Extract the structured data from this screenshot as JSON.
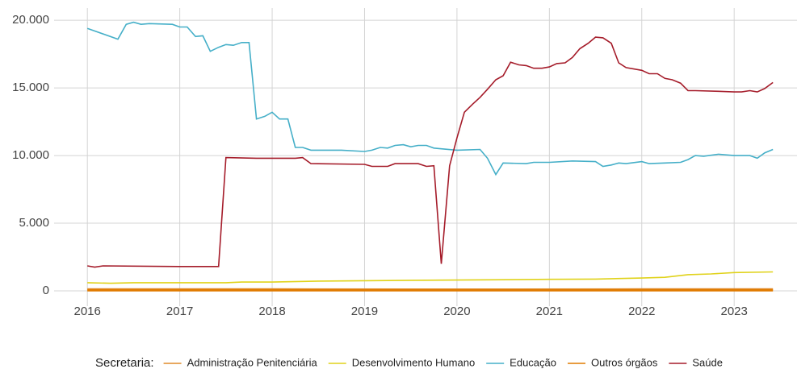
{
  "chart_data": {
    "type": "line",
    "xlim": [
      2015.64,
      2023.68
    ],
    "xticks": [
      2016,
      2017,
      2018,
      2019,
      2020,
      2021,
      2022,
      2023
    ],
    "ylim": [
      -1130,
      20900
    ],
    "yticks": [
      0,
      {
        "value": 5000,
        "label": "5.000"
      },
      {
        "value": 10000,
        "label": "10.000"
      },
      {
        "value": 15000,
        "label": "15.000"
      },
      {
        "value": 20000,
        "label": "20.000"
      }
    ],
    "grid": true,
    "legend_position": "bottom",
    "legend_title": "Secretaria:",
    "series": [
      {
        "name": "Administração Penitenciária",
        "color": "#e08b2a",
        "x": [
          2016.0,
          2018.0,
          2020.0,
          2022.0,
          2023.42
        ],
        "values": [
          100,
          100,
          90,
          100,
          100
        ]
      },
      {
        "name": "Desenvolvimento Humano",
        "color": "#e0d21a",
        "x": [
          2016.0,
          2016.25,
          2016.5,
          2017.5,
          2017.67,
          2018.0,
          2018.5,
          2019.0,
          2019.5,
          2020.0,
          2020.5,
          2021.0,
          2021.5,
          2022.0,
          2022.25,
          2022.5,
          2022.75,
          2023.0,
          2023.42
        ],
        "values": [
          600,
          560,
          600,
          600,
          650,
          650,
          720,
          750,
          780,
          800,
          820,
          850,
          870,
          950,
          1000,
          1200,
          1250,
          1350,
          1400
        ]
      },
      {
        "name": "Educação",
        "color": "#45afc8",
        "x": [
          2016.0,
          2016.33,
          2016.42,
          2016.5,
          2016.58,
          2016.67,
          2016.92,
          2017.0,
          2017.08,
          2017.17,
          2017.25,
          2017.33,
          2017.42,
          2017.5,
          2017.58,
          2017.67,
          2017.75,
          2017.83,
          2017.92,
          2018.0,
          2018.08,
          2018.17,
          2018.25,
          2018.33,
          2018.42,
          2018.75,
          2019.0,
          2019.08,
          2019.17,
          2019.25,
          2019.33,
          2019.42,
          2019.5,
          2019.58,
          2019.67,
          2019.75,
          2019.83,
          2020.0,
          2020.25,
          2020.33,
          2020.42,
          2020.5,
          2020.75,
          2020.83,
          2021.0,
          2021.25,
          2021.5,
          2021.58,
          2021.67,
          2021.75,
          2021.83,
          2022.0,
          2022.08,
          2022.25,
          2022.42,
          2022.5,
          2022.58,
          2022.67,
          2022.83,
          2023.0,
          2023.17,
          2023.25,
          2023.33,
          2023.42
        ],
        "values": [
          19400,
          18600,
          19700,
          19850,
          19700,
          19750,
          19700,
          19500,
          19500,
          18800,
          18850,
          17700,
          18000,
          18200,
          18150,
          18350,
          18350,
          12700,
          12900,
          13200,
          12700,
          12700,
          10600,
          10600,
          10400,
          10400,
          10300,
          10400,
          10600,
          10550,
          10750,
          10800,
          10650,
          10750,
          10750,
          10550,
          10500,
          10400,
          10450,
          9800,
          8600,
          9450,
          9400,
          9500,
          9500,
          9600,
          9550,
          9200,
          9300,
          9450,
          9400,
          9550,
          9400,
          9450,
          9500,
          9700,
          10000,
          9950,
          10100,
          10000,
          10000,
          9800,
          10200,
          10450
        ]
      },
      {
        "name": "Outros órgãos",
        "color": "#e07b00",
        "x": [
          2016.0,
          2018.0,
          2020.0,
          2022.0,
          2023.42
        ],
        "values": [
          50,
          50,
          40,
          50,
          50
        ]
      },
      {
        "name": "Saúde",
        "color": "#a51c2a",
        "x": [
          2016.0,
          2016.08,
          2016.17,
          2017.0,
          2017.42,
          2017.5,
          2017.83,
          2018.0,
          2018.25,
          2018.33,
          2018.42,
          2019.0,
          2019.08,
          2019.25,
          2019.33,
          2019.58,
          2019.67,
          2019.75,
          2019.83,
          2019.92,
          2020.0,
          2020.08,
          2020.17,
          2020.25,
          2020.33,
          2020.42,
          2020.5,
          2020.58,
          2020.67,
          2020.75,
          2020.83,
          2020.92,
          2021.0,
          2021.08,
          2021.17,
          2021.25,
          2021.33,
          2021.42,
          2021.5,
          2021.58,
          2021.67,
          2021.75,
          2021.83,
          2022.0,
          2022.08,
          2022.17,
          2022.25,
          2022.33,
          2022.42,
          2022.5,
          2022.58,
          2022.83,
          2023.0,
          2023.08,
          2023.17,
          2023.25,
          2023.33,
          2023.42
        ],
        "values": [
          1850,
          1750,
          1850,
          1800,
          1800,
          9850,
          9800,
          9800,
          9800,
          9850,
          9400,
          9350,
          9200,
          9200,
          9400,
          9400,
          9200,
          9250,
          2000,
          9250,
          11300,
          13200,
          13800,
          14300,
          14900,
          15600,
          15900,
          16900,
          16700,
          16650,
          16450,
          16450,
          16550,
          16800,
          16850,
          17250,
          17900,
          18300,
          18750,
          18700,
          18300,
          16850,
          16500,
          16300,
          16050,
          16050,
          15700,
          15600,
          15350,
          14800,
          14800,
          14750,
          14700,
          14700,
          14800,
          14700,
          14950,
          15400
        ]
      }
    ]
  }
}
